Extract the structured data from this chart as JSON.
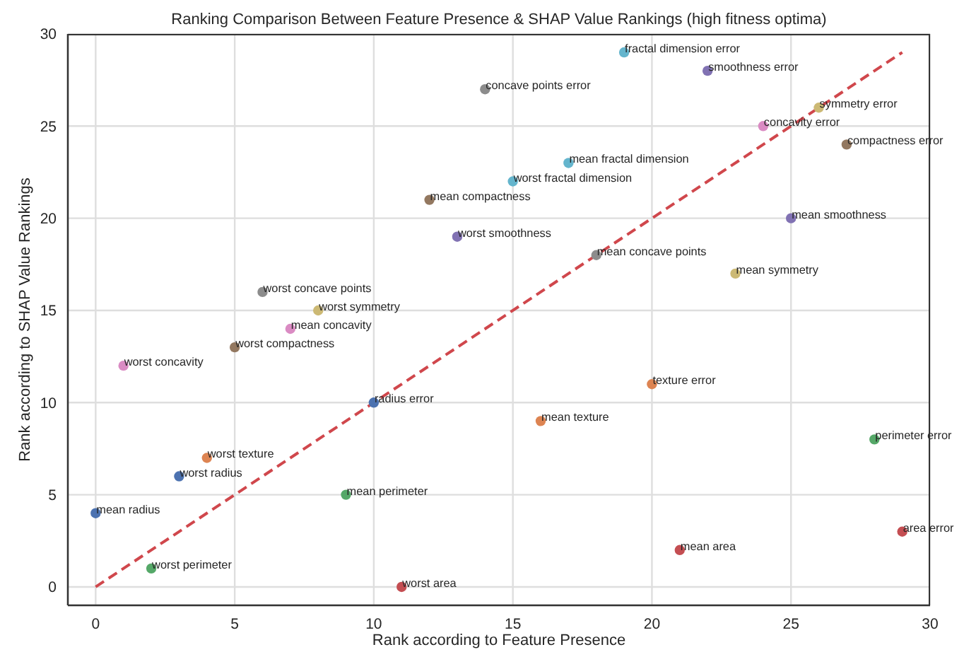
{
  "chart_data": {
    "type": "scatter",
    "title": "Ranking Comparison Between Feature Presence & SHAP Value Rankings (high fitness optima)",
    "xlabel": "Rank according to Feature Presence",
    "ylabel": "Rank according to SHAP Value Rankings",
    "x": [
      0,
      1,
      2,
      3,
      4,
      5,
      6,
      7,
      8,
      9,
      10,
      11,
      12,
      13,
      14,
      15,
      16,
      17,
      18,
      19,
      20,
      21,
      22,
      23,
      24,
      25,
      26,
      27,
      28,
      29
    ],
    "series": [
      {
        "values": [
          4,
          12,
          1,
          6,
          7,
          13,
          16,
          14,
          15,
          5,
          10,
          0,
          21,
          19,
          27,
          22,
          9,
          23,
          18,
          29,
          11,
          2,
          28,
          17,
          25,
          20,
          26,
          24,
          8,
          3
        ],
        "colors": [
          "#4c72b0",
          "#da8bc3",
          "#55a868",
          "#4c72b0",
          "#dd8452",
          "#937860",
          "#8c8c8c",
          "#da8bc3",
          "#ccb974",
          "#55a868",
          "#4c72b0",
          "#c44e52",
          "#937860",
          "#8172b3",
          "#8c8c8c",
          "#64b5cd",
          "#dd8452",
          "#64b5cd",
          "#8c8c8c",
          "#64b5cd",
          "#dd8452",
          "#c44e52",
          "#8172b3",
          "#ccb974",
          "#da8bc3",
          "#8172b3",
          "#ccb974",
          "#937860",
          "#55a868",
          "#c44e52"
        ]
      },
      {
        "type": "line",
        "x": [
          0,
          29
        ],
        "values": [
          0,
          29
        ],
        "color": "#d0474c",
        "line_style": "dashed",
        "marker": "none"
      }
    ],
    "annotations": [
      {
        "text": "mean radius",
        "x": 0,
        "y": 4
      },
      {
        "text": "worst concavity",
        "x": 1,
        "y": 12
      },
      {
        "text": "worst perimeter",
        "x": 2,
        "y": 1
      },
      {
        "text": "worst radius",
        "x": 3,
        "y": 6
      },
      {
        "text": "worst texture",
        "x": 4,
        "y": 7
      },
      {
        "text": "worst compactness",
        "x": 5,
        "y": 13
      },
      {
        "text": "worst concave points",
        "x": 6,
        "y": 16
      },
      {
        "text": "mean concavity",
        "x": 7,
        "y": 14
      },
      {
        "text": "worst symmetry",
        "x": 8,
        "y": 15
      },
      {
        "text": "mean perimeter",
        "x": 9,
        "y": 5
      },
      {
        "text": "radius error",
        "x": 10,
        "y": 10
      },
      {
        "text": "worst area",
        "x": 11,
        "y": 0
      },
      {
        "text": "mean compactness",
        "x": 12,
        "y": 21
      },
      {
        "text": "worst smoothness",
        "x": 13,
        "y": 19
      },
      {
        "text": "concave points error",
        "x": 14,
        "y": 27
      },
      {
        "text": "worst fractal dimension",
        "x": 15,
        "y": 22
      },
      {
        "text": "mean texture",
        "x": 16,
        "y": 9
      },
      {
        "text": "mean fractal dimension",
        "x": 17,
        "y": 23
      },
      {
        "text": "mean concave points",
        "x": 18,
        "y": 18
      },
      {
        "text": "fractal dimension error",
        "x": 19,
        "y": 29
      },
      {
        "text": "texture error",
        "x": 20,
        "y": 11
      },
      {
        "text": "mean area",
        "x": 21,
        "y": 2
      },
      {
        "text": "smoothness error",
        "x": 22,
        "y": 28
      },
      {
        "text": "mean symmetry",
        "x": 23,
        "y": 17
      },
      {
        "text": "concavity error",
        "x": 24,
        "y": 25
      },
      {
        "text": "mean smoothness",
        "x": 25,
        "y": 20
      },
      {
        "text": "symmetry error",
        "x": 26,
        "y": 26
      },
      {
        "text": "compactness error",
        "x": 27,
        "y": 24
      },
      {
        "text": "perimeter error",
        "x": 28,
        "y": 8
      },
      {
        "text": "area error",
        "x": 29,
        "y": 3
      }
    ],
    "xlim": [
      -1,
      30
    ],
    "ylim": [
      -1,
      30
    ],
    "xticks": [
      0,
      5,
      10,
      15,
      20,
      25,
      30
    ],
    "yticks": [
      0,
      5,
      10,
      15,
      20,
      25,
      30
    ],
    "grid": true,
    "marker": "circle"
  }
}
